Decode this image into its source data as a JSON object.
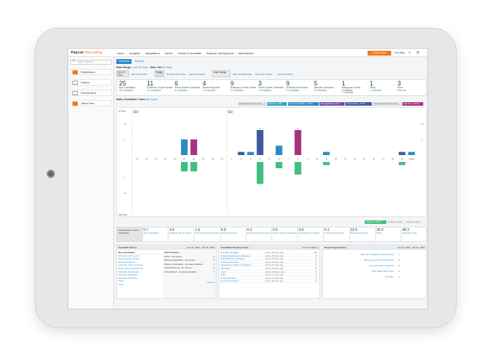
{
  "app": {
    "logo_text": "Paycor",
    "logo_sub": "Recruiting"
  },
  "nav": {
    "items": [
      "Home",
      "Analytics",
      "Integrations",
      "Admin",
      "Create a Candidate",
      "Request Job Approval",
      "Marketplace"
    ],
    "whats_new": "What's New",
    "get_help": "Get Help",
    "icons": [
      "bell-icon",
      "gear-icon"
    ]
  },
  "sidebar": {
    "search_placeholder": "Type a Search ...",
    "items": [
      {
        "label": "Requisitions",
        "icon": "requisitions-icon"
      },
      {
        "label": "Folders",
        "icon": "folder-icon"
      },
      {
        "label": "Recent Items",
        "icon": "clock-icon"
      },
      {
        "label": "Talent View",
        "icon": "talent-icon"
      }
    ]
  },
  "tabs": [
    {
      "label": "Overview",
      "active": true
    },
    {
      "label": "Reports",
      "active": false
    }
  ],
  "date_range": {
    "label": "Date Range:",
    "value": "Last 30 Days",
    "sort_label": "Date: Set",
    "sort_value": "30 Days"
  },
  "periods": [
    {
      "label": "Dec 22, 2022",
      "links": [
        "Just now Active"
      ]
    },
    {
      "label": "Today",
      "links": [
        "30 Just now Active",
        "Just now Active"
      ]
    },
    {
      "label": "Date Range",
      "links": [
        "Just now Attended",
        "Just now Closed",
        "Just now Filled"
      ]
    }
  ],
  "stats": [
    {
      "num": "25",
      "label": "New Candidates",
      "link": "25 Candidates"
    },
    {
      "num": "11",
      "label": "Schedule a Phone Screen",
      "link": "11 Candidates"
    },
    {
      "num": "6",
      "label": "Phone Screen Scheduled",
      "link": "6 Candidates"
    },
    {
      "num": "4",
      "label": "Review Required",
      "link": "4 Candidates"
    },
    {
      "num": "9",
      "label": "Schedule a Phone Screen",
      "link": "9 Candidates"
    },
    {
      "num": "3",
      "label": "Phone Screen Scheduled",
      "link": "3 Candidates"
    },
    {
      "num": "9",
      "label": "Schedule an Interview",
      "link": "9 Candidates"
    },
    {
      "num": "5",
      "label": "Interview Scheduled",
      "link": "5 Candidates"
    },
    {
      "num": "1",
      "label": "Background Check Completed",
      "link": "1 Candidate"
    },
    {
      "num": "1",
      "label": "Offers",
      "link": "1 Candidate"
    },
    {
      "num": "3",
      "label": "Hires",
      "link": "Hires list"
    }
  ],
  "chart_header": {
    "title": "Daily Candidate Times",
    "filter": "By Source"
  },
  "legend_top": [
    {
      "label": "Pending Screeners - 0.0%",
      "color": "#dcdcdc",
      "text": "#777"
    },
    {
      "label": "Referrals - 0.0%",
      "color": "#2aa7c8",
      "text": "#fff"
    },
    {
      "label": "Passive Candidates - 18.8%",
      "color": "#2a8ac4",
      "text": "#fff"
    },
    {
      "label": "New Applicants - 8.6%",
      "color": "#6d4ea6",
      "text": "#fff"
    },
    {
      "label": "Internal Hires - 15.3%",
      "color": "#3d5a9c",
      "text": "#fff"
    },
    {
      "label": "Company Screeners - 0.0%",
      "color": "#dcdcdc",
      "text": "#777"
    },
    {
      "label": "New Hires - 30.6%",
      "color": "#a8327e",
      "text": "#fff"
    }
  ],
  "legend_bottom": [
    {
      "label": "Referral - 100.0%",
      "color": "#3fbf7f",
      "text": "#fff"
    },
    {
      "label": "Company - 0.0%",
      "color": "#eeeeee",
      "text": "#777"
    },
    {
      "label": "Sourced - 0.0%",
      "color": "#eeeeee",
      "text": "#777"
    }
  ],
  "chart_data": {
    "type": "bar",
    "title": "Daily Candidate Times",
    "ylabel_top": "In Flow",
    "ylabel_bottom": "Out Flow",
    "categories": [
      "22",
      "23",
      "24",
      "25",
      "26",
      "27",
      "28",
      "29",
      "30",
      "31",
      "1",
      "2",
      "3",
      "4",
      "5",
      "6",
      "7",
      "8",
      "9",
      "10",
      "11",
      "12",
      "13",
      "14",
      "15",
      "16",
      "17",
      "18",
      "19",
      "Today"
    ],
    "month_markers": [
      {
        "index": 0,
        "label": "Dec"
      },
      {
        "index": 10,
        "label": "Jan"
      }
    ],
    "ylim_top": [
      0,
      10
    ],
    "ylim_bottom": [
      0,
      10
    ],
    "series": [
      {
        "color": "#2a8ac4",
        "dir": "up",
        "values": [
          0,
          0,
          0,
          0,
          0,
          5,
          0,
          0,
          0,
          0,
          0,
          0,
          1,
          0,
          0,
          3,
          0,
          0,
          0,
          0,
          1,
          0,
          0,
          0,
          0,
          0,
          0,
          0,
          0,
          1
        ]
      },
      {
        "color": "#a8327e",
        "dir": "up",
        "values": [
          0,
          0,
          0,
          0,
          0,
          0,
          5,
          0,
          0,
          0,
          0,
          0,
          0,
          0,
          0,
          0,
          0,
          8,
          0,
          0,
          0,
          0,
          0,
          0,
          0,
          0,
          0,
          0,
          0,
          0
        ]
      },
      {
        "color": "#3d5a9c",
        "dir": "up",
        "values": [
          0,
          0,
          0,
          0,
          0,
          0,
          0,
          0,
          0,
          0,
          0,
          1,
          0,
          8,
          0,
          0,
          0,
          0,
          0,
          0,
          0,
          0,
          0,
          0,
          0,
          0,
          0,
          0,
          1,
          0
        ]
      },
      {
        "color": "#3fbf7f",
        "dir": "down",
        "values": [
          0,
          0,
          0,
          0,
          0,
          3,
          3,
          0,
          0,
          0,
          0,
          0,
          0,
          7,
          0,
          2,
          0,
          4,
          0,
          0,
          1,
          0,
          0,
          0,
          0,
          0,
          0,
          0,
          1,
          0
        ]
      }
    ]
  },
  "funnel": {
    "intro": "Average Days to Move Candidates",
    "steps": [
      {
        "num": "0.7",
        "label": "New Candidates"
      },
      {
        "num": "3.9",
        "label": "Schedule Phone Screen"
      },
      {
        "num": "1.6",
        "label": "Phone Screen Scheduled"
      },
      {
        "num": "5.9",
        "label": "Review Required"
      },
      {
        "num": "4.3",
        "label": "Schedule a Phone Screen"
      },
      {
        "num": "6.6",
        "label": "Phone Screen Scheduled"
      },
      {
        "num": "6.8",
        "label": "Schedule an Interview"
      },
      {
        "num": "0.1",
        "label": "Interview Scheduled"
      },
      {
        "num": "22.9",
        "label": "Background Check"
      },
      {
        "num": "36.0",
        "label": "Offers"
      },
      {
        "num": "48.3",
        "label": "Average of Hire"
      }
    ]
  },
  "panel_flow": {
    "title": "Candidate Flow in",
    "dates": "Dec 21, 2022 - Jan 20, 2023",
    "left_header": "New Candidates",
    "left_items": [
      "Schedule a Phone Sc...",
      "Phone Screen Sched...",
      "Review Required",
      "Schedule a Phone Screen",
      "Phone Screen Scheduled",
      "Schedule an Interview",
      "Interview Scheduled",
      "Background Checks",
      "Offers",
      "Hires"
    ],
    "top_header": "Top 5 Sources",
    "top_items": [
      {
        "label": "Direct - No Source",
        "val": "9"
      },
      {
        "label": "Passive Candidates - No Source",
        "val": "5"
      },
      {
        "label": "Passive Candidates - Company Website",
        "val": "4"
      },
      {
        "label": "Internal Referral - No Source",
        "val": "2"
      },
      {
        "label": "Job Applicant - Company Website",
        "val": "1"
      }
    ],
    "view_all": "View All"
  },
  "panel_requisition": {
    "title": "Candidates Needing Action",
    "right": "New Candidates",
    "rows": [
      {
        "job": "Inventory Manager",
        "ago": "Active 48 days ago",
        "count": "11"
      },
      {
        "job": "Resident Experience Manager",
        "ago": "Active 48 days ago",
        "count": "4"
      },
      {
        "job": "CNC Machinery Manager",
        "ago": "Active 48 days ago",
        "count": "3"
      },
      {
        "job": "Customer Service",
        "ago": "Active 48 days ago",
        "count": "2"
      },
      {
        "job": "Financial Controller - Reimbursi...",
        "ago": "Active 48 days ago",
        "count": "2"
      },
      {
        "job": "HR Admin",
        "ago": "Active 45 days ago",
        "count": "2"
      },
      {
        "job": "Intern",
        "ago": "Active 108 days ago",
        "count": "1"
      },
      {
        "job": "Intern",
        "ago": "Active 41 days ago",
        "count": "1"
      },
      {
        "job": "Project Engineer",
        "ago": "Active 71 days ago",
        "count": "1"
      },
      {
        "job": "Service Technician",
        "ago": "Active 48 days ago",
        "count": "1"
      }
    ]
  },
  "panel_upcoming": {
    "title": "Recent Opportunities",
    "dates": "Dec 22, 2022 - Jan 21, 2023",
    "rows": [
      {
        "label": "Director Of Quality for Plant Pastry",
        "val": "1"
      },
      {
        "label": "Pastry Sciences NGT Schedule",
        "val": "1"
      },
      {
        "label": "Executive NGT Schedule",
        "val": "1"
      },
      {
        "label": "Offer Stage NGT Intern",
        "val": "1"
      },
      {
        "label": "No Intern",
        "val": "1"
      }
    ]
  }
}
